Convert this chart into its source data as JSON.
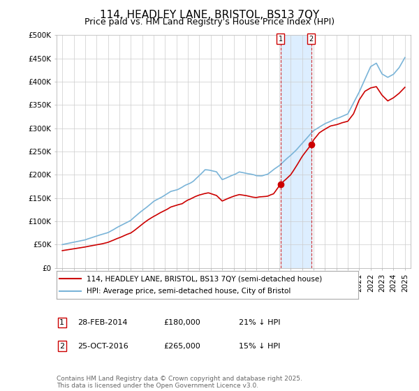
{
  "title": "114, HEADLEY LANE, BRISTOL, BS13 7QY",
  "subtitle": "Price paid vs. HM Land Registry's House Price Index (HPI)",
  "ylabel_ticks": [
    "£0",
    "£50K",
    "£100K",
    "£150K",
    "£200K",
    "£250K",
    "£300K",
    "£350K",
    "£400K",
    "£450K",
    "£500K"
  ],
  "ytick_values": [
    0,
    50000,
    100000,
    150000,
    200000,
    250000,
    300000,
    350000,
    400000,
    450000,
    500000
  ],
  "ylim": [
    0,
    500000
  ],
  "xlim_start": 1994.5,
  "xlim_end": 2025.5,
  "transaction1_date": 2014.125,
  "transaction1_price": 180000,
  "transaction2_date": 2016.792,
  "transaction2_price": 265000,
  "legend_line1": "114, HEADLEY LANE, BRISTOL, BS13 7QY (semi-detached house)",
  "legend_line2": "HPI: Average price, semi-detached house, City of Bristol",
  "footer": "Contains HM Land Registry data © Crown copyright and database right 2025.\nThis data is licensed under the Open Government Licence v3.0.",
  "hpi_color": "#7ab4d8",
  "price_color": "#cc0000",
  "vline_color": "#cc0000",
  "shade_color": "#ddeeff",
  "background_color": "#ffffff",
  "grid_color": "#cccccc",
  "title_fontsize": 11,
  "subtitle_fontsize": 9,
  "tick_fontsize": 7.5,
  "legend_fontsize": 7.5,
  "footer_fontsize": 6.5
}
